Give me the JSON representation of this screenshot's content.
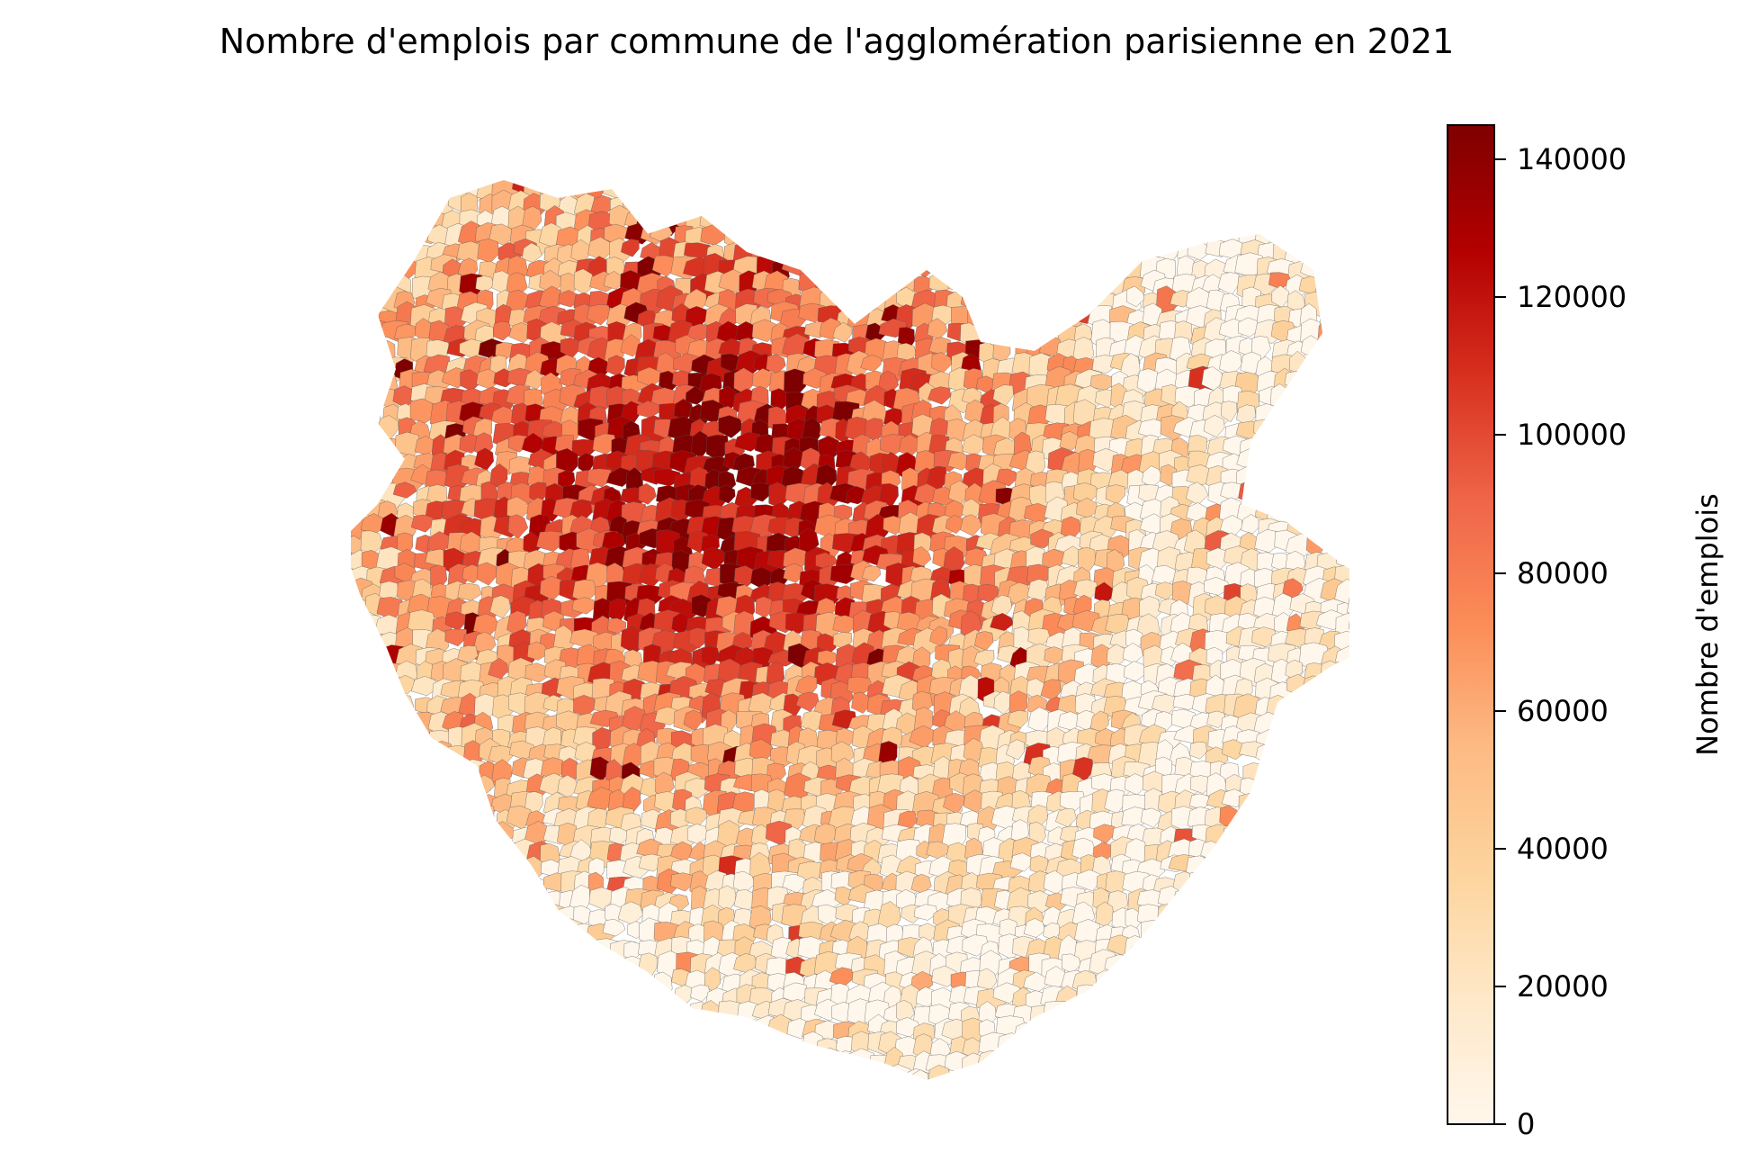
{
  "title": "Nombre d'emplois par commune de l'agglomération parisienne en 2021",
  "colorbar": {
    "label": "Nombre d'emplois",
    "min": 0,
    "max": 145000,
    "colormap": "OrRd",
    "ticks": [
      {
        "value": 0,
        "label": "0"
      },
      {
        "value": 20000,
        "label": "20000"
      },
      {
        "value": 40000,
        "label": "40000"
      },
      {
        "value": 60000,
        "label": "60000"
      },
      {
        "value": 80000,
        "label": "80000"
      },
      {
        "value": 100000,
        "label": "100000"
      },
      {
        "value": 120000,
        "label": "120000"
      },
      {
        "value": 140000,
        "label": "140000"
      }
    ],
    "stops": [
      "#fff7ec",
      "#fee8c8",
      "#fdd49e",
      "#fdbb84",
      "#fc8d59",
      "#ef6548",
      "#d7301f",
      "#b30000",
      "#7f0000"
    ]
  },
  "map": {
    "region": "agglomération parisienne",
    "unit": "commune",
    "pattern": "high values concentrated at the centre, decreasing towards the periphery",
    "border_color": "#555555"
  }
}
